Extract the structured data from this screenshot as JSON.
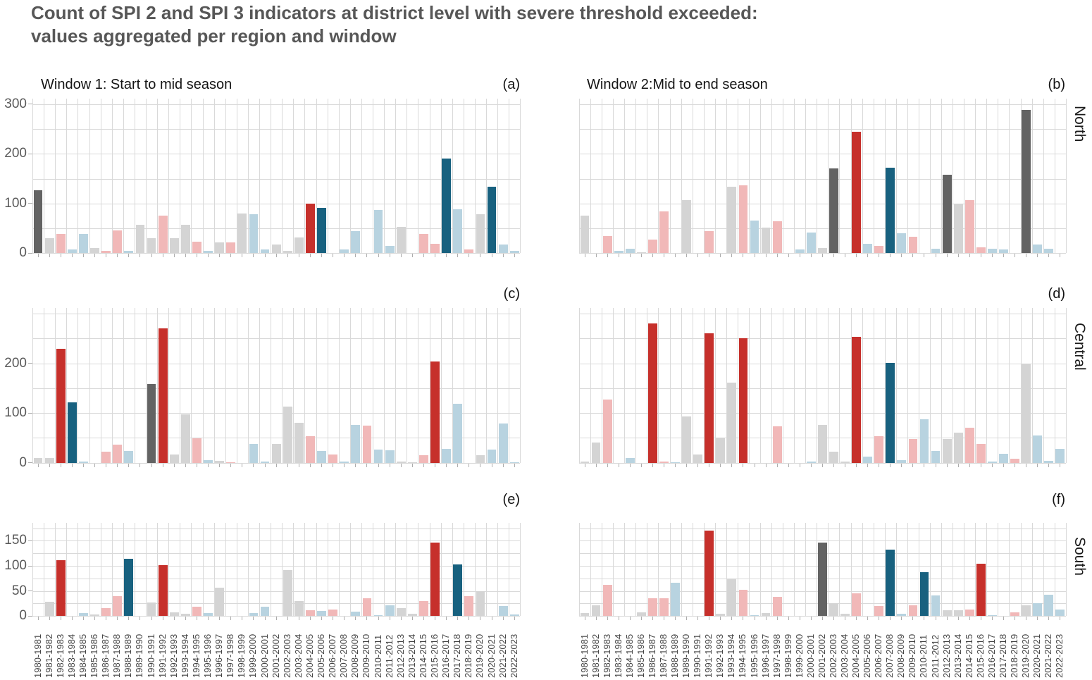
{
  "title": {
    "line1": "Count of SPI 2 and SPI 3 indicators at district level with severe threshold exceeded:",
    "line2": "values aggregated per region and window"
  },
  "chart_data": {
    "type": "bar",
    "grid": "on",
    "windows": [
      {
        "label": "Window 1: Start to mid season"
      },
      {
        "label": "Window 2:Mid to end season"
      }
    ],
    "regions": [
      "North",
      "Central",
      "South"
    ],
    "categories": [
      "1980-1981",
      "1981-1982",
      "1982-1983",
      "1983-1984",
      "1984-1985",
      "1985-1986",
      "1986-1987",
      "1987-1988",
      "1988-1989",
      "1989-1990",
      "1990-1991",
      "1991-1992",
      "1992-1993",
      "1993-1994",
      "1994-1995",
      "1995-1996",
      "1996-1997",
      "1997-1998",
      "1998-1999",
      "1999-2000",
      "2000-2001",
      "2001-2002",
      "2002-2003",
      "2003-2004",
      "2004-2005",
      "2005-2006",
      "2006-2007",
      "2007-2008",
      "2008-2009",
      "2009-2010",
      "2010-2011",
      "2011-2012",
      "2012-2013",
      "2013-2014",
      "2014-2015",
      "2015-2016",
      "2016-2017",
      "2017-2018",
      "2018-2019",
      "2019-2020",
      "2020-2021",
      "2021-2022",
      "2022-2023"
    ],
    "color_legend": {
      "G": "dark-gray",
      "g": "light-gray",
      "R": "dark-red",
      "r": "light-red",
      "B": "dark-blue",
      "b": "light-blue"
    },
    "colors": {
      "G": "#636363",
      "g": "#d4d4d4",
      "R": "#c6302b",
      "r": "#f1b8b8",
      "B": "#18617f",
      "b": "#b8d3e0"
    },
    "y_axes": {
      "North": {
        "tick_labels": [
          0,
          100,
          200,
          300
        ],
        "gridstep": 50,
        "max": 300
      },
      "Central": {
        "tick_labels": [
          0,
          100,
          200
        ],
        "gridstep": 50,
        "max": 300
      },
      "South": {
        "tick_labels": [
          0,
          50,
          100,
          150
        ],
        "gridstep": 25,
        "max": 175
      }
    },
    "panels": [
      {
        "letter": "(a)",
        "window": "Window 1: Start to mid season",
        "region": "North",
        "block": "left",
        "values": [
          127,
          30,
          38,
          7,
          38,
          10,
          4,
          46,
          5,
          57,
          30,
          75,
          30,
          57,
          23,
          5,
          22,
          21,
          80,
          79,
          8,
          17,
          5,
          31,
          99,
          91,
          0,
          8,
          45,
          0,
          87,
          15,
          53,
          0,
          38,
          19,
          190,
          88,
          7,
          79,
          134,
          17,
          4
        ],
        "colors": [
          "G",
          "g",
          "r",
          "b",
          "b",
          "g",
          "r",
          "r",
          "b",
          "g",
          "g",
          "r",
          "g",
          "g",
          "r",
          "b",
          "g",
          "r",
          "g",
          "b",
          "b",
          "g",
          "g",
          "g",
          "R",
          "B",
          "",
          "b",
          "b",
          "",
          "b",
          "b",
          "g",
          "",
          "r",
          "r",
          "B",
          "b",
          "r",
          "g",
          "B",
          "b",
          "b"
        ]
      },
      {
        "letter": "(b)",
        "window": "Window 2:Mid to end season",
        "region": "North",
        "block": "right",
        "values": [
          76,
          0,
          34,
          4,
          9,
          2,
          27,
          84,
          0,
          107,
          0,
          45,
          0,
          134,
          136,
          65,
          52,
          64,
          0,
          7,
          41,
          11,
          171,
          0,
          244,
          19,
          15,
          172,
          40,
          33,
          0,
          9,
          158,
          100,
          107,
          12,
          9,
          8,
          0,
          288,
          18,
          9,
          0
        ],
        "colors": [
          "g",
          "",
          "r",
          "b",
          "b",
          "g",
          "r",
          "r",
          "",
          "g",
          "",
          "r",
          "",
          "g",
          "r",
          "b",
          "g",
          "r",
          "",
          "b",
          "b",
          "g",
          "G",
          "",
          "R",
          "b",
          "r",
          "B",
          "b",
          "r",
          "",
          "b",
          "G",
          "g",
          "r",
          "r",
          "b",
          "b",
          "",
          "G",
          "b",
          "b",
          ""
        ]
      },
      {
        "letter": "(c)",
        "window": "Window 1: Start to mid season",
        "region": "Central",
        "block": "left",
        "values": [
          9,
          10,
          229,
          122,
          2,
          0,
          22,
          36,
          23,
          0,
          158,
          270,
          17,
          98,
          49,
          5,
          4,
          1,
          0,
          38,
          3,
          38,
          113,
          80,
          53,
          23,
          16,
          2,
          76,
          75,
          26,
          25,
          3,
          1,
          15,
          204,
          28,
          118,
          0,
          15,
          27,
          79,
          1
        ],
        "colors": [
          "g",
          "g",
          "R",
          "B",
          "b",
          "",
          "r",
          "r",
          "b",
          "",
          "G",
          "R",
          "g",
          "g",
          "r",
          "b",
          "g",
          "r",
          "",
          "b",
          "b",
          "g",
          "g",
          "g",
          "r",
          "b",
          "r",
          "b",
          "b",
          "r",
          "b",
          "b",
          "g",
          "g",
          "r",
          "R",
          "b",
          "b",
          "",
          "g",
          "b",
          "b",
          "b"
        ]
      },
      {
        "letter": "(d)",
        "window": "Window 2:Mid to end season",
        "region": "Central",
        "block": "right",
        "values": [
          3,
          40,
          127,
          0,
          9,
          0,
          280,
          2,
          1,
          93,
          16,
          260,
          50,
          161,
          251,
          0,
          0,
          74,
          0,
          0,
          2,
          76,
          22,
          2,
          253,
          12,
          54,
          201,
          5,
          48,
          88,
          23,
          48,
          60,
          70,
          38,
          2,
          18,
          8,
          200,
          55,
          4,
          28
        ],
        "colors": [
          "g",
          "g",
          "r",
          "",
          "b",
          "",
          "R",
          "r",
          "b",
          "g",
          "g",
          "R",
          "g",
          "g",
          "R",
          "",
          "",
          "r",
          "",
          "",
          "b",
          "g",
          "g",
          "g",
          "R",
          "b",
          "r",
          "B",
          "b",
          "r",
          "b",
          "b",
          "g",
          "g",
          "r",
          "r",
          "b",
          "b",
          "r",
          "g",
          "b",
          "b",
          "b"
        ]
      },
      {
        "letter": "(e)",
        "window": "Window 1: Start to mid season",
        "region": "South",
        "block": "left",
        "values": [
          0,
          29,
          111,
          0,
          6,
          3,
          16,
          40,
          114,
          0,
          27,
          101,
          7,
          5,
          18,
          6,
          56,
          0,
          0,
          6,
          19,
          0,
          92,
          30,
          12,
          10,
          13,
          0,
          9,
          36,
          2,
          21,
          16,
          5,
          30,
          146,
          0,
          103,
          39,
          49,
          0,
          20,
          3
        ],
        "colors": [
          "",
          "g",
          "R",
          "",
          "b",
          "g",
          "r",
          "r",
          "B",
          "",
          "g",
          "R",
          "g",
          "g",
          "r",
          "b",
          "g",
          "",
          "",
          "b",
          "b",
          "",
          "g",
          "g",
          "r",
          "b",
          "r",
          "",
          "b",
          "r",
          "b",
          "b",
          "g",
          "g",
          "r",
          "R",
          "",
          "B",
          "r",
          "g",
          "",
          "b",
          "b"
        ]
      },
      {
        "letter": "(f)",
        "window": "Window 2:Mid to end season",
        "region": "South",
        "block": "right",
        "values": [
          6,
          22,
          62,
          0,
          0,
          8,
          36,
          36,
          66,
          0,
          0,
          170,
          5,
          75,
          53,
          2,
          6,
          38,
          0,
          0,
          0,
          146,
          25,
          5,
          46,
          0,
          20,
          132,
          4,
          22,
          87,
          41,
          11,
          11,
          13,
          104,
          2,
          0,
          7,
          22,
          26,
          42,
          13
        ],
        "colors": [
          "g",
          "g",
          "r",
          "",
          "",
          "g",
          "r",
          "r",
          "b",
          "",
          "",
          "R",
          "g",
          "g",
          "r",
          "b",
          "g",
          "r",
          "",
          "",
          "",
          "G",
          "g",
          "g",
          "r",
          "",
          "r",
          "B",
          "b",
          "r",
          "B",
          "b",
          "g",
          "g",
          "r",
          "R",
          "b",
          "",
          "r",
          "g",
          "b",
          "b",
          "b"
        ]
      }
    ]
  }
}
